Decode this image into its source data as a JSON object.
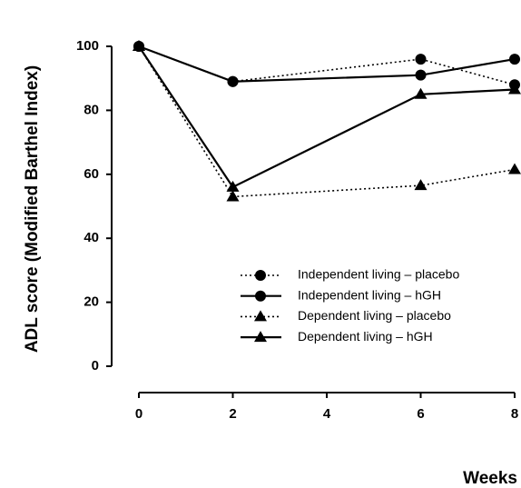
{
  "chart_data": {
    "type": "line",
    "x_label": "Weeks",
    "y_label": "ADL score (Modified Barthel Index)",
    "x": [
      0,
      2,
      6,
      8
    ],
    "xlim": [
      0,
      8
    ],
    "xticks": [
      0,
      2,
      4,
      6,
      8
    ],
    "ylim": [
      0,
      100
    ],
    "yticks": [
      0,
      20,
      40,
      60,
      80,
      100
    ],
    "series": [
      {
        "name": "Independent living – placebo",
        "color": "#000000",
        "marker": "circle",
        "dashed": true,
        "values": [
          100,
          89,
          96,
          88
        ]
      },
      {
        "name": "Independent living – hGH",
        "color": "#000000",
        "marker": "circle",
        "dashed": false,
        "values": [
          100,
          89,
          91,
          96
        ]
      },
      {
        "name": "Dependent living – placebo",
        "color": "#000000",
        "marker": "triangle",
        "dashed": true,
        "values": [
          100,
          53,
          56.5,
          61.5
        ]
      },
      {
        "name": "Dependent living – hGH",
        "color": "#000000",
        "marker": "triangle",
        "dashed": false,
        "values": [
          100,
          56,
          85,
          86.5
        ]
      }
    ]
  }
}
